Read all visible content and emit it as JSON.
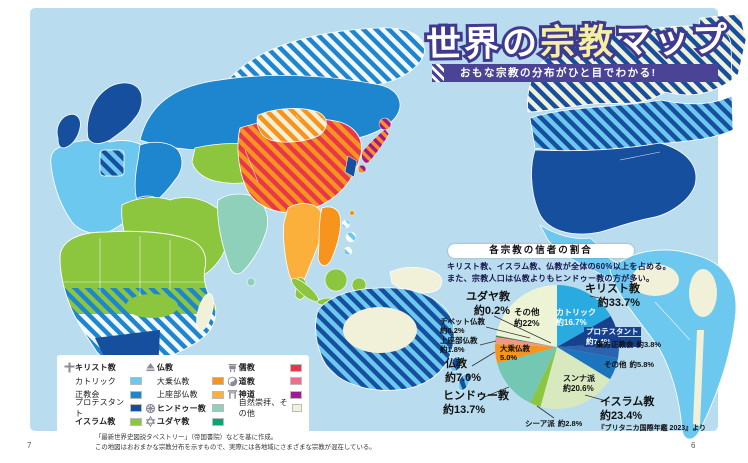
{
  "title": {
    "main_part1": "世界の",
    "main_part2": "宗教",
    "main_part3": "マップ",
    "subtitle": "おもな宗教の分布がひと目でわかる!"
  },
  "colors": {
    "ocean": "#B9DCEF",
    "catholic": "#6DC8F0",
    "orthodox": "#1E86CE",
    "protestant": "#164F9E",
    "islam": "#8CC63F",
    "mahayana": "#F7941D",
    "theravada": "#FBB03B",
    "hinduism": "#8FD0BB",
    "judaism": "#00A875",
    "confucianism": "#E8374A",
    "taoism": "#EE6E8D",
    "shinto": "#A31795",
    "nature": "#F0F1D8",
    "title_outline_purple": "#3F3A8E",
    "banner_purple": "#4B4396",
    "title_yellow": "#F6EFA3",
    "hatch_white": "#F2F7FA"
  },
  "legend": {
    "christianity": "キリスト教",
    "catholic": "カトリック",
    "orthodox": "正教会",
    "protestant": "プロテスタント",
    "islam": "イスラム教",
    "buddhism": "仏教",
    "mahayana": "大乗仏教",
    "theravada": "上座部仏教",
    "hinduism": "ヒンドゥー教",
    "judaism": "ユダヤ教",
    "confucianism": "儒教",
    "taoism": "道教",
    "shinto": "神道",
    "nature": "自然崇拝、その他"
  },
  "chart_data": {
    "type": "pie",
    "title": "各宗教の信者の割合",
    "note_line1": "キリスト教、イスラム教、仏教が全体の60%以上を占める。",
    "note_line2": "また、宗教人口は仏教よりもヒンドゥー教の方が多い。",
    "source": "『ブリタニカ国際年鑑 2023』より",
    "unit": "%",
    "slices": [
      {
        "id": "catholic",
        "label": "カトリック",
        "value": 16.7,
        "display": "約16.7%",
        "color": "#29ABE2"
      },
      {
        "id": "protestant",
        "label": "プロテスタント",
        "value": 7.4,
        "display": "約7.4%",
        "color": "#16418C"
      },
      {
        "id": "eastern-orthodox",
        "label": "東方正教会",
        "value": 3.8,
        "display": "約3.8%",
        "color": "#2D62AE"
      },
      {
        "id": "other-christian",
        "label": "その他",
        "value": 5.8,
        "display": "約5.8%",
        "color": "#1C75BC"
      },
      {
        "id": "sunni",
        "label": "スンナ派",
        "value": 20.6,
        "display": "約20.6%",
        "color": "#D8E9C0"
      },
      {
        "id": "shia",
        "label": "シーア派",
        "value": 2.8,
        "display": "約2.8%",
        "color": "#8CC63F"
      },
      {
        "id": "hindu",
        "label": "ヒンドゥー教",
        "value": 13.7,
        "display": "約13.7%",
        "color": "#74C7B3"
      },
      {
        "id": "mahayana",
        "label": "大乗仏教",
        "value": 5.0,
        "display": "5.0%",
        "color": "#F7941D"
      },
      {
        "id": "theravada",
        "label": "上座部仏教",
        "value": 1.8,
        "display": "約1.8%",
        "color": "#F09A86"
      },
      {
        "id": "tibetan",
        "label": "チベット仏教",
        "value": 0.2,
        "display": "約0.2%",
        "color": "#A63A38"
      },
      {
        "id": "jewish",
        "label": "ユダヤ教",
        "value": 0.2,
        "display": "約0.2%",
        "color": "#00A651"
      },
      {
        "id": "other",
        "label": "その他",
        "value": 22.0,
        "display": "約22%",
        "color": "#EDF4D6"
      }
    ],
    "groups": [
      {
        "id": "christianity",
        "label": "キリスト教",
        "display": "約33.7%"
      },
      {
        "id": "islam",
        "label": "イスラム教",
        "display": "約23.4%"
      },
      {
        "id": "hinduism",
        "label": "ヒンドゥー教",
        "display": "約13.7%"
      },
      {
        "id": "buddhism",
        "label": "仏教",
        "display": "約7.0%"
      },
      {
        "id": "judaism",
        "label": "ユダヤ教",
        "display": "約0.2%"
      }
    ]
  },
  "footnote": {
    "line1": "「最新世界史図説タペストリー」（帝国書院）などを基に作成。",
    "line2": "この地図はおおまかな宗教分布を示すもので、実際には各地域にさまざまな宗教が混在している。"
  },
  "page": {
    "left_page_number": "7",
    "right_page_number": "6"
  }
}
